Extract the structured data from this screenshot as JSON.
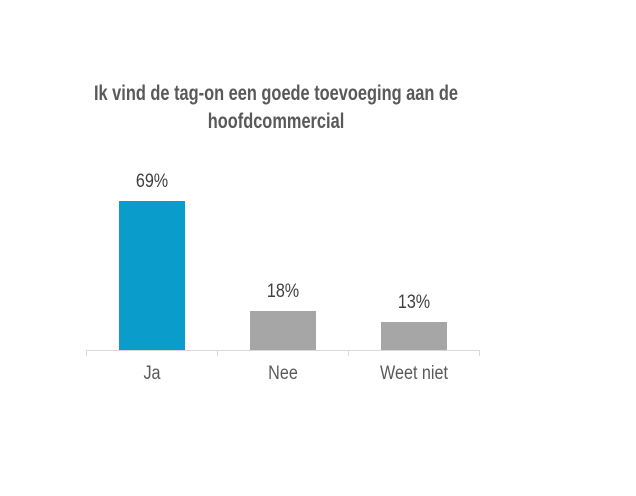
{
  "chart_data": {
    "type": "bar",
    "title": "Ik vind de tag-on een goede toevoeging aan de hoofdcommercial",
    "categories": [
      "Ja",
      "Nee",
      "Weet niet"
    ],
    "values": [
      69,
      18,
      13
    ],
    "value_labels": [
      "69%",
      "18%",
      "13%"
    ],
    "unit": "%",
    "series_name": "",
    "xlabel": "",
    "ylabel": "",
    "grid": false,
    "legend": false,
    "y_axis_visible": false,
    "bar_colors": [
      "#0A9CCB",
      "#A6A6A6",
      "#A6A6A6"
    ],
    "accent_color": "#0A9CCB",
    "neutral_bar_color": "#A6A6A6",
    "axis_color": "#D9D9D9",
    "title_color": "#595959",
    "value_label_color": "#404040",
    "category_label_color": "#595959",
    "background_color": "#FFFFFF"
  }
}
